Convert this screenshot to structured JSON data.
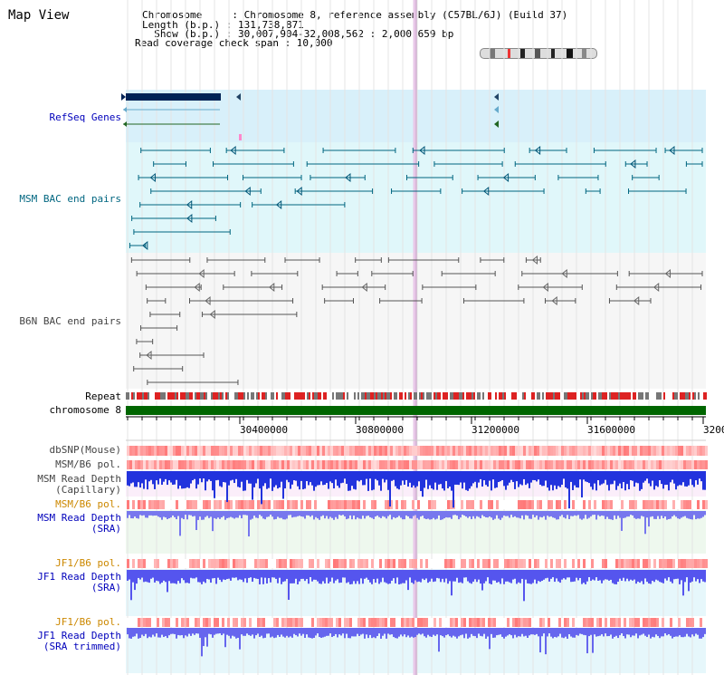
{
  "view_title": "Map View",
  "header": {
    "chromosome": "Chromosome     : Chromosome 8, reference assembly (C57BL/6J) (Build 37)",
    "length": "Length (b.p.) : 131,738,871",
    "show": "  Show (b.p.) : 30,007,904-32,008,562 : 2,000,659 bp",
    "coverage": "Read coverage check span : 10,000"
  },
  "tracks": {
    "refseq": "RefSeq Genes",
    "msm_bac": "MSM BAC end pairs",
    "b6n_bac": "B6N BAC end pairs",
    "repeat": "Repeat",
    "chromosome": "chromosome 8",
    "dbsnp": "dbSNP(Mouse)",
    "msm_b6_pol_1": "MSM/B6 pol.",
    "msm_depth_cap_1": "MSM Read Depth",
    "msm_depth_cap_2": "(Capillary)",
    "msm_b6_pol_2": "MSM/B6 pol.",
    "msm_depth_sra_1": "MSM Read Depth",
    "msm_depth_sra_2": "(SRA)",
    "jf1_b6_pol_1": "JF1/B6 pol.",
    "jf1_depth_sra_1": "JF1 Read Depth",
    "jf1_depth_sra_2": "(SRA)",
    "jf1_b6_pol_2": "JF1/B6 pol.",
    "jf1_depth_trim_1": "JF1 Read Depth",
    "jf1_depth_trim_2": "(SRA trimmed)"
  },
  "axis_ticks": [
    "30400000",
    "30800000",
    "31200000",
    "31600000",
    "3200"
  ],
  "colors": {
    "refseq_bg": "#d8f0fa",
    "bac_bg": "#e0f6f8",
    "chromosome_bar": "#006600",
    "repeat_red": "#dd2222",
    "depth_blue": "#2222dd",
    "pol_red": "#ee4444"
  }
}
